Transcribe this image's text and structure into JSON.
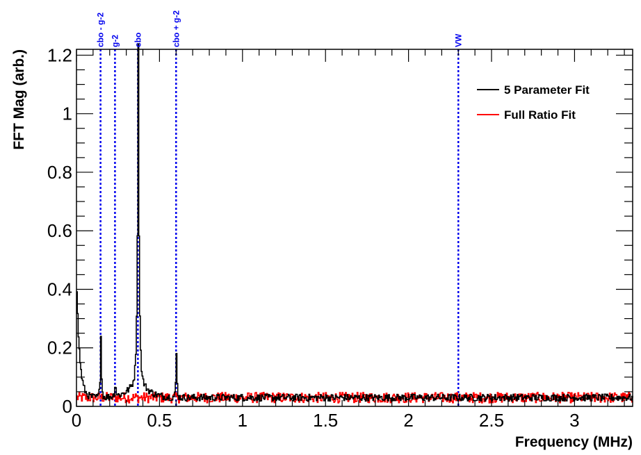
{
  "chart_data": {
    "type": "line",
    "title": "",
    "xlabel": "Frequency (MHz)",
    "ylabel": "FFT Mag (arb.)",
    "xlim": [
      0,
      3.35
    ],
    "ylim": [
      0,
      1.22
    ],
    "x_ticks": [
      0,
      0.5,
      1,
      1.5,
      2,
      2.5,
      3
    ],
    "x_tick_labels": [
      "0",
      "0.5",
      "1",
      "1.5",
      "2",
      "2.5",
      "3"
    ],
    "y_ticks": [
      0,
      0.2,
      0.4,
      0.6,
      0.8,
      1,
      1.2
    ],
    "y_tick_labels": [
      "0",
      "0.2",
      "0.4",
      "0.6",
      "0.8",
      "1",
      "1.2"
    ],
    "legend_position": "top-right",
    "colors": {
      "marker": "#0000ee",
      "five_param": "#000000",
      "full_ratio": "#ff0000"
    },
    "markers": [
      {
        "label": "cbo - g-2",
        "x": 0.145
      },
      {
        "label": "g-2",
        "x": 0.232
      },
      {
        "label": "cbo",
        "x": 0.37
      },
      {
        "label": "cbo + g-2",
        "x": 0.6
      },
      {
        "label": "VW",
        "x": 2.3
      }
    ],
    "series": [
      {
        "name": "5 Parameter Fit",
        "color": "#000000",
        "peaks": [
          {
            "x": 0.0,
            "y": 0.4
          },
          {
            "x": 0.145,
            "y": 0.25
          },
          {
            "x": 0.232,
            "y": 0.09
          },
          {
            "x": 0.37,
            "y": 1.14
          },
          {
            "x": 0.6,
            "y": 0.18
          }
        ],
        "baseline": 0.03
      },
      {
        "name": "Full Ratio Fit",
        "color": "#ff0000",
        "peaks": [],
        "baseline": 0.03
      }
    ]
  }
}
